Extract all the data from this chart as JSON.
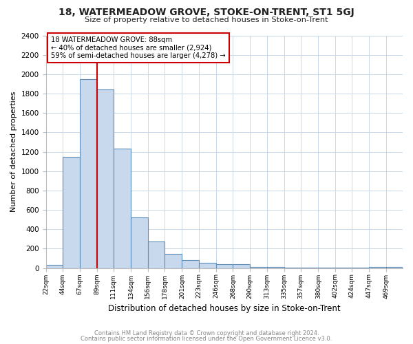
{
  "title": "18, WATERMEADOW GROVE, STOKE-ON-TRENT, ST1 5GJ",
  "subtitle": "Size of property relative to detached houses in Stoke-on-Trent",
  "xlabel": "Distribution of detached houses by size in Stoke-on-Trent",
  "ylabel": "Number of detached properties",
  "bin_labels": [
    "22sqm",
    "44sqm",
    "67sqm",
    "89sqm",
    "111sqm",
    "134sqm",
    "156sqm",
    "178sqm",
    "201sqm",
    "223sqm",
    "246sqm",
    "268sqm",
    "290sqm",
    "313sqm",
    "335sqm",
    "357sqm",
    "380sqm",
    "402sqm",
    "424sqm",
    "447sqm",
    "469sqm"
  ],
  "bar_values": [
    30,
    1150,
    1950,
    1840,
    1230,
    520,
    275,
    150,
    80,
    55,
    40,
    40,
    15,
    10,
    5,
    5,
    3,
    2,
    2,
    10,
    15
  ],
  "bar_color": "#c9d9ed",
  "bar_edge_color": "#5b8db8",
  "vline_x_index": 3,
  "vline_color": "#cc0000",
  "annotation_title": "18 WATERMEADOW GROVE: 88sqm",
  "annotation_line1": "← 40% of detached houses are smaller (2,924)",
  "annotation_line2": "59% of semi-detached houses are larger (4,278) →",
  "annotation_box_facecolor": "#ffffff",
  "annotation_box_edgecolor": "#cc0000",
  "ylim": [
    0,
    2400
  ],
  "yticks": [
    0,
    200,
    400,
    600,
    800,
    1000,
    1200,
    1400,
    1600,
    1800,
    2000,
    2200,
    2400
  ],
  "footer1": "Contains HM Land Registry data © Crown copyright and database right 2024.",
  "footer2": "Contains public sector information licensed under the Open Government Licence v3.0.",
  "bg_color": "#ffffff",
  "plot_bg_color": "#ffffff",
  "grid_color": "#c8d8e8",
  "bin_starts": [
    22,
    44,
    67,
    89,
    111,
    134,
    156,
    178,
    201,
    223,
    246,
    268,
    290,
    313,
    335,
    357,
    380,
    402,
    424,
    447,
    469
  ]
}
